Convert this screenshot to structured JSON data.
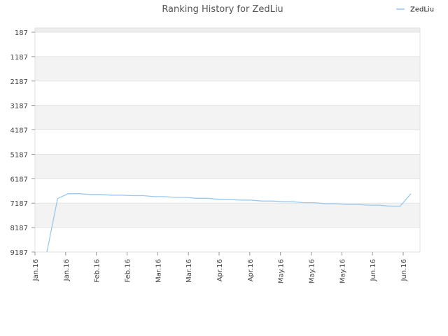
{
  "chart_data": {
    "type": "line",
    "title": "Ranking History for ZedLiu",
    "xlabel": "",
    "ylabel": "",
    "y_inverted": true,
    "ylim": [
      187,
      9187
    ],
    "yticks": [
      187,
      1187,
      2187,
      3187,
      4187,
      5187,
      6187,
      7187,
      8187,
      9187
    ],
    "xtick_labels": [
      "Jan.16",
      "Jan.16",
      "Feb.16",
      "Feb.16",
      "Mar.16",
      "Mar.16",
      "Apr.16",
      "Apr.16",
      "May.16",
      "May.16",
      "May.16",
      "Jun.16",
      "Jun.16"
    ],
    "grid": "horizontal alternating bands",
    "legend": {
      "position": "top-right",
      "entries": [
        "ZedLiu"
      ]
    },
    "series": [
      {
        "name": "ZedLiu",
        "color": "#99c8f0",
        "values": [
          9187,
          7000,
          6800,
          6800,
          6830,
          6830,
          6860,
          6860,
          6880,
          6880,
          6920,
          6920,
          6950,
          6950,
          6990,
          6990,
          7030,
          7030,
          7060,
          7060,
          7100,
          7100,
          7130,
          7130,
          7170,
          7170,
          7210,
          7210,
          7240,
          7240,
          7270,
          7270,
          7310,
          7310,
          6800
        ]
      }
    ]
  }
}
